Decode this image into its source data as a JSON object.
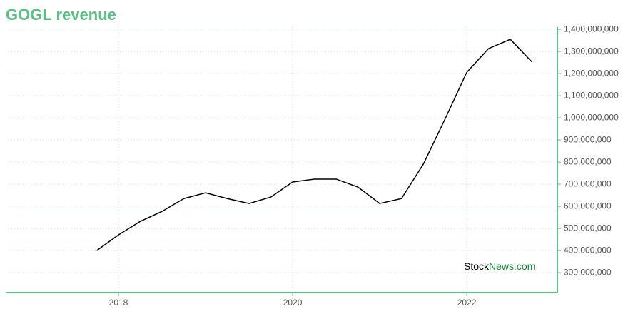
{
  "chart_data": {
    "type": "line",
    "title": "GOGL revenue",
    "x": [
      2017.75,
      2018,
      2018.25,
      2018.5,
      2018.75,
      2019,
      2019.25,
      2019.5,
      2019.75,
      2020,
      2020.25,
      2020.5,
      2020.75,
      2021,
      2021.25,
      2021.5,
      2021.75,
      2022,
      2022.25,
      2022.5,
      2022.75
    ],
    "series": [
      {
        "name": "GOGL revenue",
        "color": "#000000",
        "values": [
          400000000,
          471000000,
          532000000,
          577000000,
          635000000,
          661000000,
          635000000,
          613000000,
          642000000,
          710000000,
          723000000,
          723000000,
          687000000,
          613000000,
          635000000,
          790000000,
          994000000,
          1206000000,
          1313000000,
          1355000000,
          1252000000
        ]
      }
    ],
    "xlim": [
      2016.705,
      2023.04
    ],
    "xticks": [
      2018,
      2020,
      2022
    ],
    "ylim": [
      210000000,
      1410000000
    ],
    "yticks": [
      {
        "value": 300000000,
        "label": "300,000,000"
      },
      {
        "value": 400000000,
        "label": "400,000,000"
      },
      {
        "value": 500000000,
        "label": "500,000,000"
      },
      {
        "value": 600000000,
        "label": "600,000,000"
      },
      {
        "value": 700000000,
        "label": "700,000,000"
      },
      {
        "value": 800000000,
        "label": "800,000,000"
      },
      {
        "value": 900000000,
        "label": "900,000,000"
      },
      {
        "value": 1000000000,
        "label": "1,000,000,000"
      },
      {
        "value": 1100000000,
        "label": "1,100,000,000"
      },
      {
        "value": 1200000000,
        "label": "1,200,000,000"
      },
      {
        "value": 1300000000,
        "label": "1,300,000,000"
      },
      {
        "value": 1400000000,
        "label": "1,400,000,000"
      }
    ],
    "grid": true,
    "axis_color": "#5cbf85",
    "watermark": [
      "Stock",
      "News.com"
    ]
  }
}
